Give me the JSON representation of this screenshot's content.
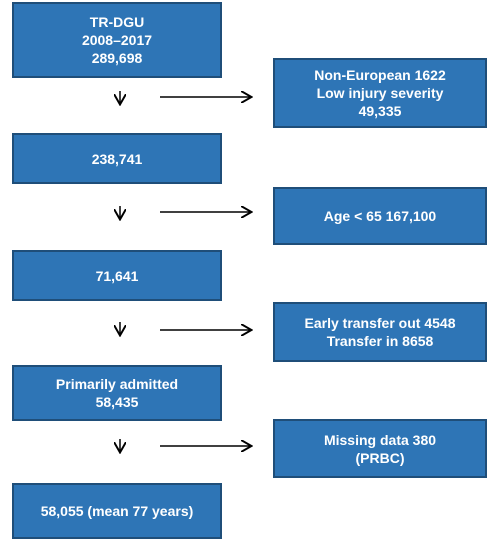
{
  "nodes": [
    {
      "lines": [
        "TR-DGU",
        "2008–2017",
        "289,698"
      ]
    },
    {
      "lines": [
        "238,741"
      ]
    },
    {
      "lines": [
        "71,641"
      ]
    },
    {
      "lines": [
        "Primarily admitted",
        "58,435"
      ]
    },
    {
      "lines": [
        "58,055 (mean 77 years)"
      ]
    }
  ],
  "exclusions": [
    {
      "lines": [
        "Non-European 1622",
        "Low injury severity",
        "49,335"
      ]
    },
    {
      "lines": [
        "Age < 65 167,100"
      ]
    },
    {
      "lines": [
        "Early transfer out 4548",
        "Transfer in 8658"
      ]
    },
    {
      "lines": [
        "Missing data 380",
        "(PRBC)"
      ]
    }
  ]
}
